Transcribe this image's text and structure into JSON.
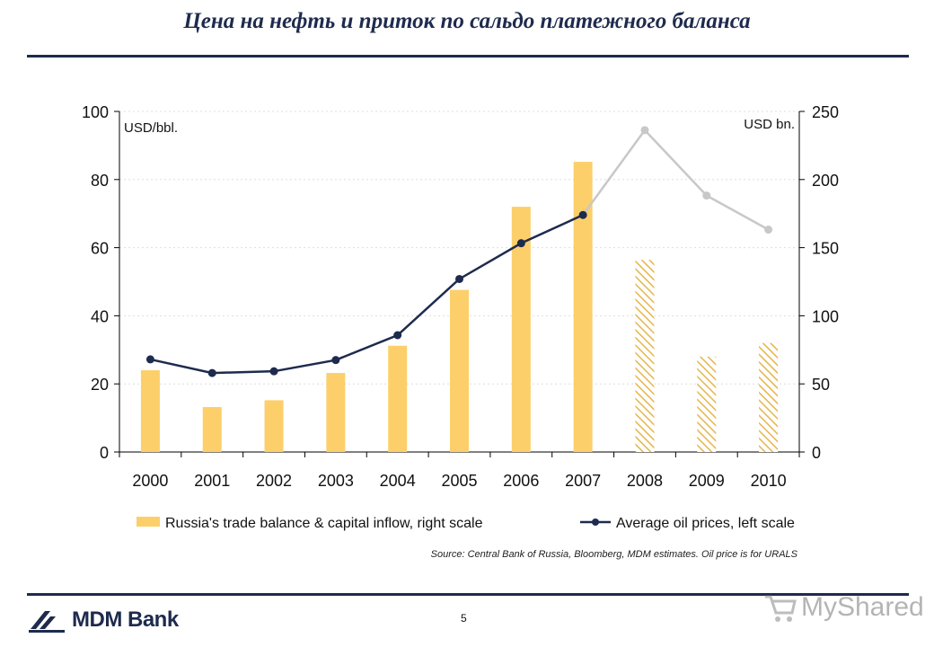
{
  "header": {
    "title": "Цена на нефть и приток по сальдо платежного баланса"
  },
  "chart_data": {
    "type": "bar+line",
    "categories": [
      "2000",
      "2001",
      "2002",
      "2003",
      "2004",
      "2005",
      "2006",
      "2007",
      "2008",
      "2009",
      "2010"
    ],
    "left_axis": {
      "unit_label": "USD/bbl.",
      "ylim": [
        0,
        100
      ],
      "ticks": [
        "0",
        "20",
        "40",
        "60",
        "80",
        "100"
      ]
    },
    "right_axis": {
      "unit_label": "USD bn.",
      "ylim": [
        0,
        250
      ],
      "ticks": [
        "0",
        "50",
        "100",
        "150",
        "200",
        "250"
      ]
    },
    "bars": {
      "name": "Russia's trade balance & capital inflow, right scale",
      "axis": "right",
      "values": [
        60,
        33,
        38,
        58,
        78,
        119,
        180,
        213,
        141,
        70,
        80
      ],
      "estimated_from_index": 8
    },
    "line": {
      "name": "Average oil prices, left scale",
      "axis": "left",
      "values": [
        27.2,
        23.2,
        23.7,
        27.0,
        34.3,
        50.8,
        61.3,
        69.6,
        94.5,
        75.3,
        65.3
      ],
      "estimated_from_index": 8
    },
    "colors": {
      "bar": "#fccf6b",
      "bar_hatch": "#e6b54a",
      "line": "#1e2b4e",
      "line_estimate": "#c8c8c8",
      "grid": "#dddddd"
    },
    "grid": true,
    "legend_position": "bottom"
  },
  "footer": {
    "source": "Source: Central Bank of Russia, Bloomberg, MDM estimates. Oil price is for URALS",
    "page_number": "5",
    "logo_text": "MDM Bank",
    "watermark_text": "MyShared"
  }
}
